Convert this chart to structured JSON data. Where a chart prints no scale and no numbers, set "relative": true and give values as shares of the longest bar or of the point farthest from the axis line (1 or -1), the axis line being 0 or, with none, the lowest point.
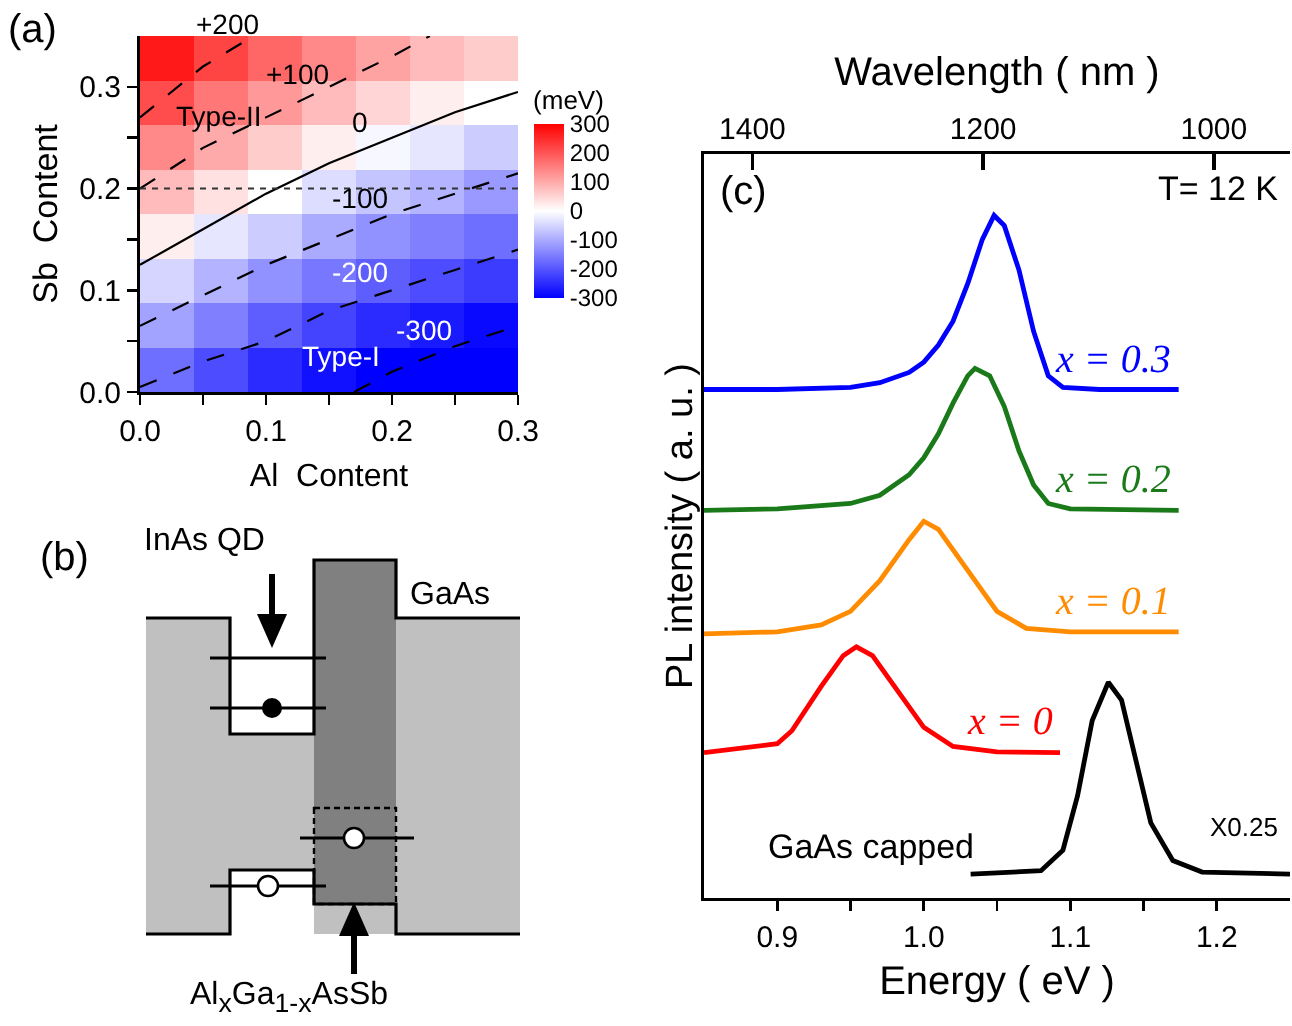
{
  "chart_data": [
    {
      "type": "heatmap",
      "clabel": "(meV)",
      "tick_labels": false,
      "categories": [
        null,
        null,
        null,
        null,
        null,
        null,
        null
      ],
      "y_categories": [
        null,
        null,
        null,
        null,
        null,
        null,
        null,
        null
      ],
      "cells": [
        [
          270,
          220,
          180,
          140,
          110,
          80,
          60
        ],
        [
          210,
          160,
          120,
          80,
          50,
          20,
          0
        ],
        [
          140,
          100,
          60,
          20,
          -10,
          -30,
          -60
        ],
        [
          80,
          35,
          0,
          -40,
          -70,
          -90,
          -120
        ],
        [
          20,
          -30,
          -60,
          -100,
          -130,
          -150,
          -170
        ],
        [
          -50,
          -90,
          -130,
          -160,
          -190,
          -210,
          -230
        ],
        [
          -110,
          -150,
          -190,
          -220,
          -250,
          -270,
          -290
        ],
        [
          -170,
          -210,
          -250,
          -280,
          -300,
          -300,
          -300
        ]
      ],
      "clim": [
        -300,
        300
      ],
      "cticks": [
        300,
        200,
        100,
        0,
        -100,
        -200,
        -300
      ]
    },
    {
      "type": "line",
      "xlabel": "Al  Content",
      "ylabel": "Sb  Content",
      "xlim": [
        0,
        0.3
      ],
      "xticks": [
        {
          "value": 0,
          "label": "0.0"
        },
        {
          "value": 0.05,
          "label": null
        },
        0.1,
        {
          "value": 0.15,
          "label": null
        },
        0.2,
        {
          "value": 0.25,
          "label": null
        },
        0.3
      ],
      "ylim": [
        0,
        0.35
      ],
      "yticks": [
        {
          "value": 0,
          "label": "0.0"
        },
        {
          "value": 0.05,
          "label": null
        },
        0.1,
        {
          "value": 0.15,
          "label": null
        },
        0.2,
        {
          "value": 0.25,
          "label": null
        },
        0.3
      ],
      "series": [
        {
          "name": "+200",
          "color": "#000000",
          "line_style": "dashed",
          "x": [
            0,
            0.05,
            0.09
          ],
          "values": [
            0.27,
            0.32,
            0.35
          ]
        },
        {
          "name": "+100",
          "color": "#000000",
          "line_style": "dashed",
          "x": [
            0,
            0.05,
            0.1,
            0.15,
            0.2,
            0.23
          ],
          "values": [
            0.2,
            0.24,
            0.27,
            0.3,
            0.33,
            0.35
          ]
        },
        {
          "name": "0",
          "color": "#000000",
          "line_style": "solid",
          "x": [
            0,
            0.05,
            0.1,
            0.15,
            0.2,
            0.25,
            0.3
          ],
          "values": [
            0.125,
            0.16,
            0.195,
            0.225,
            0.25,
            0.275,
            0.295
          ]
        },
        {
          "name": "-100",
          "color": "#000000",
          "line_style": "dashed",
          "x": [
            0,
            0.05,
            0.1,
            0.15,
            0.2,
            0.25,
            0.3
          ],
          "values": [
            0.065,
            0.095,
            0.125,
            0.15,
            0.175,
            0.195,
            0.215
          ]
        },
        {
          "name": "-200",
          "color": "#000000",
          "line_style": "dashed",
          "x": [
            0,
            0.05,
            0.1,
            0.15,
            0.2,
            0.25,
            0.3
          ],
          "values": [
            0.005,
            0.03,
            0.05,
            0.08,
            0.1,
            0.12,
            0.14
          ]
        },
        {
          "name": "-300",
          "color": "#000000",
          "line_style": "dashed",
          "x": [
            0.17,
            0.2,
            0.25,
            0.3
          ],
          "values": [
            0,
            0.02,
            0.045,
            0.065
          ]
        }
      ],
      "ref_lines": [
        {
          "axis": "y",
          "value": 0.2,
          "line_style": "dotted"
        }
      ],
      "annotations": [
        "(a)",
        "Type-II",
        "Type-I"
      ]
    },
    {
      "type": "other",
      "annotations": [
        "(b)",
        "InAs QD",
        "GaAs",
        "Al$_{x}$Ga$_{1-x}$AsSb"
      ]
    },
    {
      "type": "line",
      "relative": true,
      "xlabel": "Energy ( eV )",
      "ylabel": "PL intensity ( a. u. )",
      "x2label": "Wavelength ( nm )",
      "xlim": [
        0.85,
        1.25
      ],
      "xticks": [
        0.9,
        {
          "value": 0.95,
          "label": null
        },
        {
          "value": 1.0,
          "label": "1.0"
        },
        {
          "value": 1.05,
          "label": null
        },
        1.1,
        {
          "value": 1.15,
          "label": null
        },
        1.2
      ],
      "x2lim": [
        1442,
        934
      ],
      "x2ticks": [
        1400,
        1200,
        1000
      ],
      "tick_labels": "x",
      "series": [
        {
          "name": "x = 0.3",
          "color": "#0000ff",
          "x": [
            0.85,
            0.9,
            0.95,
            0.97,
            0.99,
            1.0,
            1.01,
            1.02,
            1.03,
            1.04,
            1.048,
            1.055,
            1.065,
            1.075,
            1.085,
            1.095,
            1.12,
            1.174
          ],
          "values": [
            0.745,
            0.745,
            0.748,
            0.755,
            0.77,
            0.785,
            0.81,
            0.845,
            0.9,
            0.965,
            1.0,
            0.985,
            0.92,
            0.83,
            0.765,
            0.748,
            0.745,
            0.745
          ]
        },
        {
          "name": "x = 0.2",
          "color": "#1a7a1a",
          "x": [
            0.85,
            0.9,
            0.95,
            0.97,
            0.99,
            1.0,
            1.01,
            1.02,
            1.03,
            1.035,
            1.045,
            1.055,
            1.065,
            1.075,
            1.085,
            1.1,
            1.174
          ],
          "values": [
            0.568,
            0.57,
            0.578,
            0.59,
            0.62,
            0.645,
            0.68,
            0.725,
            0.765,
            0.776,
            0.765,
            0.72,
            0.655,
            0.605,
            0.578,
            0.57,
            0.568
          ]
        },
        {
          "name": "x = 0.1",
          "color": "#ff8c00",
          "x": [
            0.85,
            0.9,
            0.93,
            0.95,
            0.97,
            0.99,
            1.0,
            1.01,
            1.03,
            1.05,
            1.07,
            1.1,
            1.174
          ],
          "values": [
            0.387,
            0.39,
            0.4,
            0.42,
            0.465,
            0.525,
            0.552,
            0.54,
            0.48,
            0.42,
            0.395,
            0.39,
            0.39
          ]
        },
        {
          "name": "x = 0",
          "color": "#ff0000",
          "x": [
            0.85,
            0.9,
            0.91,
            0.93,
            0.945,
            0.954,
            0.965,
            0.98,
            1.0,
            1.02,
            1.05,
            1.093
          ],
          "values": [
            0.213,
            0.226,
            0.245,
            0.31,
            0.355,
            0.368,
            0.355,
            0.31,
            0.25,
            0.222,
            0.214,
            0.213
          ]
        },
        {
          "name": "GaAs capped",
          "color": "#000000",
          "x": [
            1.032,
            1.08,
            1.095,
            1.105,
            1.115,
            1.126,
            1.135,
            1.145,
            1.155,
            1.17,
            1.19,
            1.25
          ],
          "values": [
            0.035,
            0.04,
            0.07,
            0.15,
            0.26,
            0.316,
            0.29,
            0.2,
            0.11,
            0.055,
            0.038,
            0.035
          ]
        }
      ],
      "annotations": [
        "(c)",
        "T= 12 K",
        "X0.25"
      ]
    }
  ]
}
